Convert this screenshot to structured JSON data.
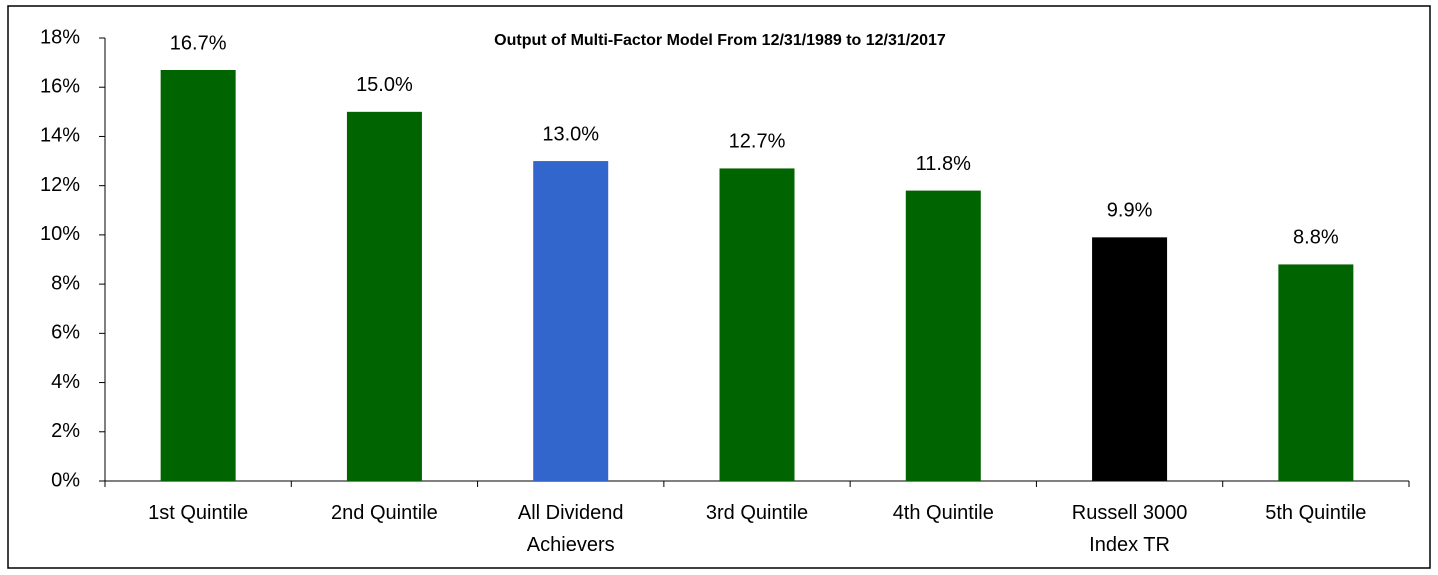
{
  "chart_data": {
    "type": "bar",
    "title": "Output of Multi-Factor Model From 12/31/1989 to 12/31/2017",
    "categories": [
      "1st Quintile",
      "2nd Quintile",
      "All Dividend Achievers",
      "3rd Quintile",
      "4th Quintile",
      "Russell 3000 Index TR",
      "5th Quintile"
    ],
    "values": [
      16.7,
      15.0,
      13.0,
      12.7,
      11.8,
      9.9,
      8.8
    ],
    "value_labels": [
      "16.7%",
      "15.0%",
      "13.0%",
      "12.7%",
      "11.8%",
      "9.9%",
      "8.8%"
    ],
    "colors": [
      "#006400",
      "#006400",
      "#3366cc",
      "#006400",
      "#006400",
      "#000000",
      "#006400"
    ],
    "ylim": [
      0,
      18
    ],
    "yticks": [
      {
        "value": 0,
        "label": "0%"
      },
      {
        "value": 2,
        "label": "2%"
      },
      {
        "value": 4,
        "label": "4%"
      },
      {
        "value": 6,
        "label": "6%"
      },
      {
        "value": 8,
        "label": "8%"
      },
      {
        "value": 10,
        "label": "10%"
      },
      {
        "value": 12,
        "label": "12%"
      },
      {
        "value": 14,
        "label": "14%"
      },
      {
        "value": 16,
        "label": "16%"
      },
      {
        "value": 18,
        "label": "18%"
      }
    ],
    "grid": false
  }
}
